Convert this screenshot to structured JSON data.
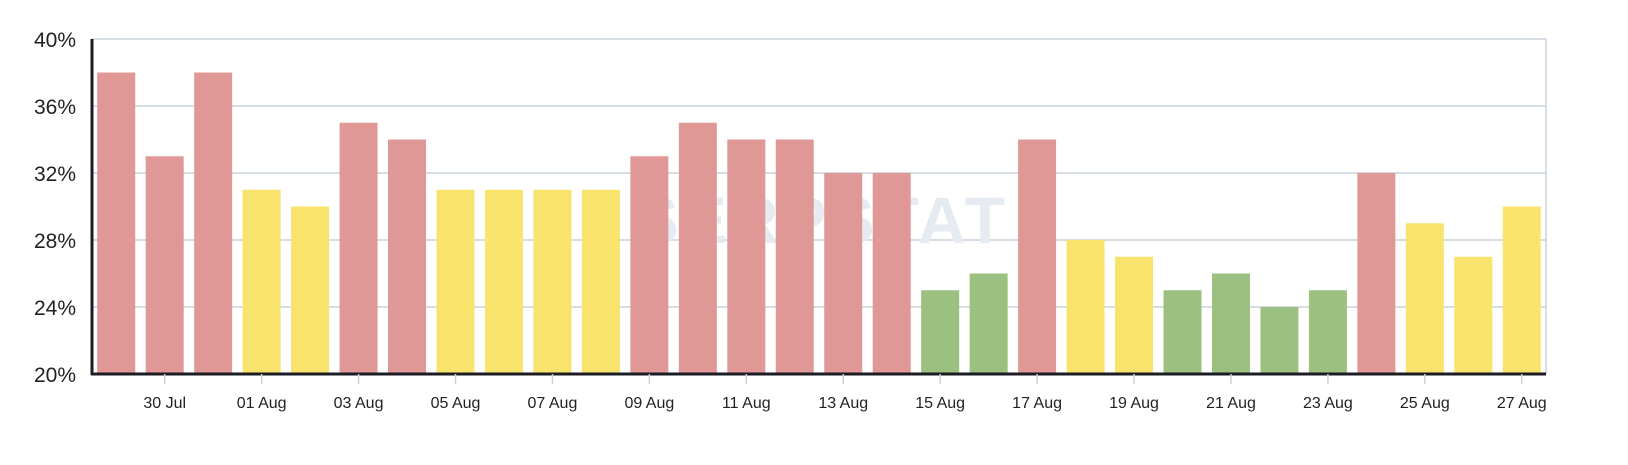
{
  "watermark": "SERPSTAT",
  "chart_data": {
    "type": "bar",
    "categories": [
      "29 Jul",
      "30 Jul",
      "31 Jul",
      "01 Aug",
      "02 Aug",
      "03 Aug",
      "04 Aug",
      "05 Aug",
      "06 Aug",
      "07 Aug",
      "08 Aug",
      "09 Aug",
      "10 Aug",
      "11 Aug",
      "12 Aug",
      "13 Aug",
      "14 Aug",
      "15 Aug",
      "16 Aug",
      "17 Aug",
      "18 Aug",
      "19 Aug",
      "20 Aug",
      "21 Aug",
      "22 Aug",
      "23 Aug",
      "24 Aug",
      "25 Aug",
      "26 Aug",
      "27 Aug"
    ],
    "x_tick_labels": [
      "30 Jul",
      "01 Aug",
      "03 Aug",
      "05 Aug",
      "07 Aug",
      "09 Aug",
      "11 Aug",
      "13 Aug",
      "15 Aug",
      "17 Aug",
      "19 Aug",
      "21 Aug",
      "23 Aug",
      "25 Aug",
      "27 Aug"
    ],
    "values": [
      38,
      33,
      38,
      31,
      30,
      35,
      34,
      31,
      31,
      31,
      31,
      33,
      35,
      34,
      34,
      32,
      32,
      25,
      26,
      34,
      28,
      27,
      25,
      26,
      24,
      25,
      32,
      29,
      27,
      30
    ],
    "bar_colors": [
      "red",
      "red",
      "red",
      "yellow",
      "yellow",
      "red",
      "red",
      "yellow",
      "yellow",
      "yellow",
      "yellow",
      "red",
      "red",
      "red",
      "red",
      "red",
      "red",
      "green",
      "green",
      "red",
      "yellow",
      "yellow",
      "green",
      "green",
      "green",
      "green",
      "red",
      "yellow",
      "yellow",
      "yellow"
    ],
    "color_map": {
      "red": "#e09896",
      "yellow": "#f8e36c",
      "green": "#9bc07f"
    },
    "y_ticks": [
      "20%",
      "24%",
      "28%",
      "32%",
      "36%",
      "40%"
    ],
    "ylim": [
      20,
      40
    ],
    "y_tick_step": 4,
    "title": "",
    "xlabel": "",
    "ylabel": "",
    "grid": true,
    "grid_color": "#c8d2dc",
    "axis_color": "#1c1c24",
    "watermark_color": "#e6ebf2"
  }
}
